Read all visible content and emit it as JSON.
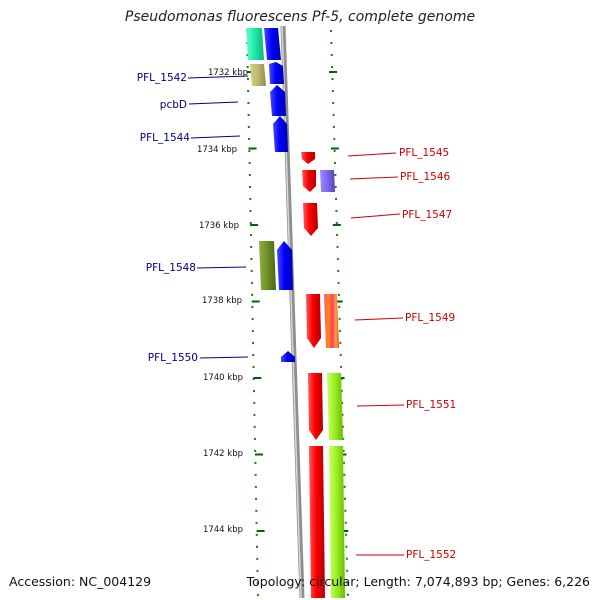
{
  "title": "Pseudomonas fluorescens Pf-5, complete genome",
  "footer": {
    "accession": "Accession: NC_004129",
    "topology": "Topology: circular; Length: 7,074,893 bp; Genes: 6,226"
  },
  "scale_labels": [
    "1732 kbp",
    "1734 kbp",
    "1736 kbp",
    "1738 kbp",
    "1740 kbp",
    "1742 kbp",
    "1744 kbp"
  ],
  "genes_left": [
    "PFL_1542",
    "pcbD",
    "PFL_1544",
    "PFL_1548",
    "PFL_1550"
  ],
  "genes_right": [
    "PFL_1545",
    "PFL_1546",
    "PFL_1547",
    "PFL_1549",
    "PFL_1551",
    "PFL_1552"
  ],
  "colors": {
    "forward_strand": "#0000ff",
    "reverse_strand": "#ff0000",
    "left_label": "#00008b",
    "right_label": "#cc0000",
    "backbone": "#999999",
    "tick": "#006400"
  }
}
